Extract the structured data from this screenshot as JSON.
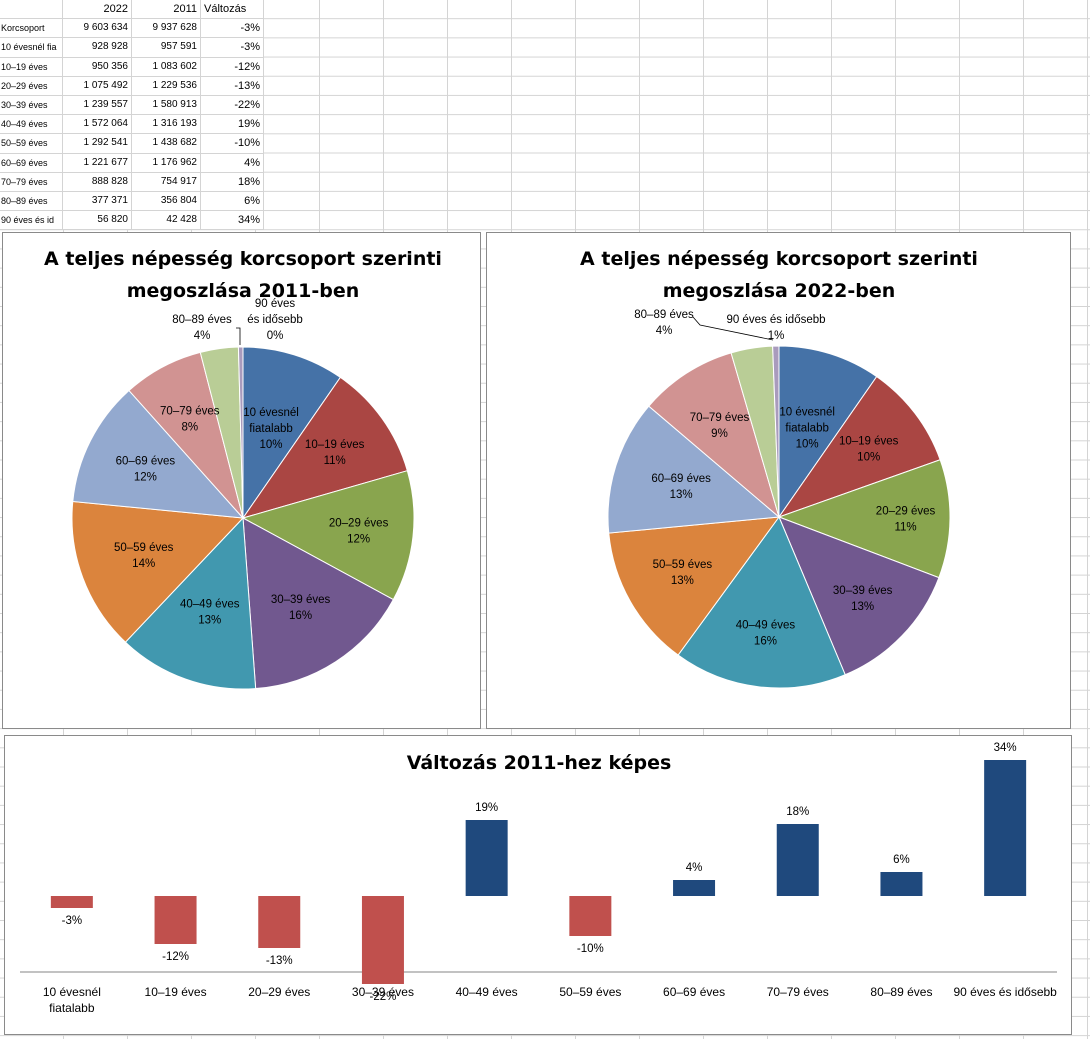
{
  "sheet": {
    "headers": [
      "",
      "2022",
      "2011",
      "Változás"
    ],
    "rows": [
      [
        "Korcsoport",
        "9 603 634",
        "9 937 628",
        "-3%"
      ],
      [
        "10 évesnél fia",
        "928 928",
        "957 591",
        "-3%"
      ],
      [
        "10–19 éves",
        "950 356",
        "1 083 602",
        "-12%"
      ],
      [
        "20–29 éves",
        "1 075 492",
        "1 229 536",
        "-13%"
      ],
      [
        "30–39 éves",
        "1 239 557",
        "1 580 913",
        "-22%"
      ],
      [
        "40–49 éves",
        "1 572 064",
        "1 316 193",
        "19%"
      ],
      [
        "50–59 éves",
        "1 292 541",
        "1 438 682",
        "-10%"
      ],
      [
        "60–69 éves",
        "1 221 677",
        "1 176 962",
        "4%"
      ],
      [
        "70–79 éves",
        "888 828",
        "754 917",
        "18%"
      ],
      [
        "80–89 éves",
        "377 371",
        "356 804",
        "6%"
      ],
      [
        "90 éves és id",
        "56 820",
        "42 428",
        "34%"
      ]
    ]
  },
  "chart_data": [
    {
      "type": "pie",
      "title": [
        "A teljes népesség korcsoport szerinti",
        "megoszlása 2011-ben"
      ],
      "labels": [
        "10 évesnél fiatalabb",
        "10–19 éves",
        "20–29 éves",
        "30–39 éves",
        "40–49 éves",
        "50–59 éves",
        "60–69 éves",
        "70–79 éves",
        "80–89 éves",
        "90 éves és idősebb"
      ],
      "values": [
        957591,
        1083602,
        1229536,
        1580913,
        1316193,
        1438682,
        1176962,
        754917,
        356804,
        42428
      ],
      "percent_labels": [
        "10%",
        "11%",
        "12%",
        "16%",
        "13%",
        "14%",
        "12%",
        "8%",
        "4%",
        "0%"
      ],
      "colors": [
        "#4572a7",
        "#aa4643",
        "#89a54e",
        "#71588f",
        "#4198af",
        "#db843d",
        "#93a9cf",
        "#d19392",
        "#b9cd96",
        "#a99bbd"
      ]
    },
    {
      "type": "pie",
      "title": [
        "A teljes népesség korcsoport szerinti",
        "megoszlása 2022-ben"
      ],
      "labels": [
        "10 évesnél fiatalabb",
        "10–19 éves",
        "20–29 éves",
        "30–39 éves",
        "40–49 éves",
        "50–59 éves",
        "60–69 éves",
        "70–79 éves",
        "80–89 éves",
        "90 éves és idősebb"
      ],
      "values": [
        928928,
        950356,
        1075492,
        1239557,
        1572064,
        1292541,
        1221677,
        888828,
        377371,
        56820
      ],
      "percent_labels": [
        "10%",
        "10%",
        "11%",
        "13%",
        "16%",
        "13%",
        "13%",
        "9%",
        "4%",
        "1%"
      ],
      "colors": [
        "#4572a7",
        "#aa4643",
        "#89a54e",
        "#71588f",
        "#4198af",
        "#db843d",
        "#93a9cf",
        "#d19392",
        "#b9cd96",
        "#a99bbd"
      ]
    },
    {
      "type": "bar",
      "title": "Változás 2011-hez képes",
      "categories": [
        "10 évesnél fiatalabb",
        "10–19 éves",
        "20–29 éves",
        "30–39 éves",
        "40–49 éves",
        "50–59 éves",
        "60–69 éves",
        "70–79 éves",
        "80–89 éves",
        "90 éves és idősebb"
      ],
      "values": [
        -3,
        -12,
        -13,
        -22,
        19,
        -10,
        4,
        18,
        6,
        34
      ],
      "value_labels": [
        "-3%",
        "-12%",
        "-13%",
        "-22%",
        "19%",
        "-10%",
        "4%",
        "18%",
        "6%",
        "34%"
      ],
      "ylim": [
        -25,
        40
      ],
      "positive_color": "#1f497d",
      "negative_color": "#c0504d"
    }
  ]
}
